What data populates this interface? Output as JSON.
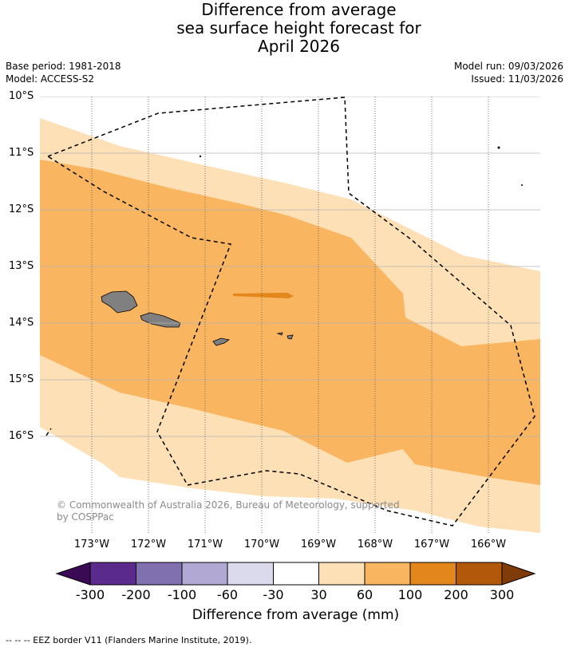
{
  "title": {
    "line1": "Difference from average",
    "line2": "sea surface height forecast for",
    "line3": "April 2026"
  },
  "meta": {
    "base_period": "Base period: 1981-2018",
    "model": "Model: ACCESS-S2",
    "model_run": "Model run: 09/03/2026",
    "issued": "Issued: 11/03/2026"
  },
  "axes": {
    "latitudes": [
      "10°S",
      "11°S",
      "12°S",
      "13°S",
      "14°S",
      "15°S",
      "16°S"
    ],
    "longitudes": [
      "173°W",
      "172°W",
      "171°W",
      "170°W",
      "169°W",
      "168°W",
      "167°W",
      "166°W"
    ]
  },
  "copyright": {
    "line1": "© Commonwealth of Australia 2026, Bureau of Meteorology, supported",
    "line2": "by COSPPac"
  },
  "colorbar": {
    "title": "Difference from average (mm)",
    "ticks": [
      "-300",
      "-200",
      "-100",
      "-60",
      "-30",
      "30",
      "60",
      "100",
      "200",
      "300"
    ],
    "colors": {
      "under": "#3b0a54",
      "b1": "#5a2b8c",
      "b2": "#8170b0",
      "b3": "#b1a9d3",
      "b4": "#dadaec",
      "b5": "#ffffff",
      "b6": "#fde0b6",
      "b7": "#f9b55f",
      "b8": "#e3861b",
      "b9": "#b1580a",
      "over": "#7f3b08"
    }
  },
  "map_colors": {
    "band_30_60": "#fde0b6",
    "band_60_100": "#f9b55f",
    "band_100_200": "#e3861b",
    "land": "#808080"
  },
  "footnote": "--  --  -- EEZ border V11 (Flanders Marine Institute, 2019)."
}
